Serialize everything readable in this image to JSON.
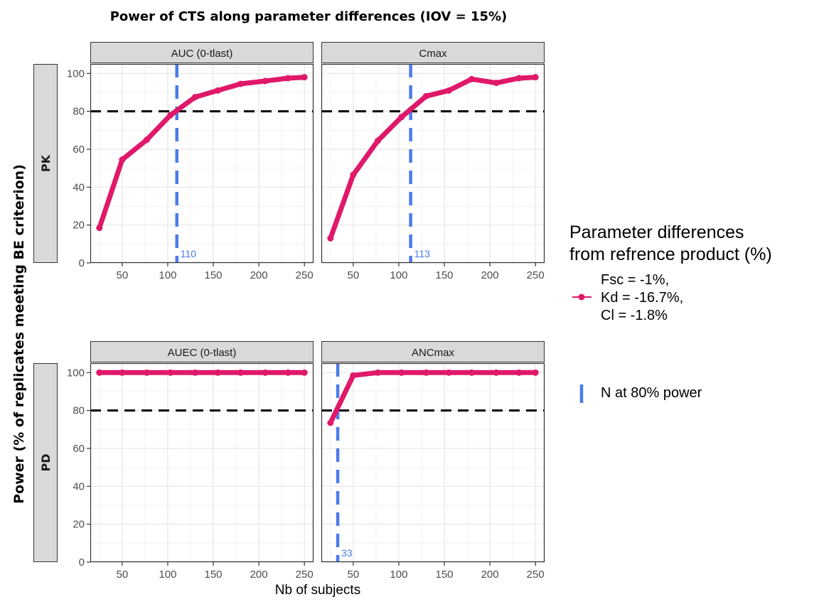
{
  "chart_data": {
    "type": "line",
    "title": "Power of CTS along parameter differences (IOV = 15%)",
    "xlabel": "Nb of subjects",
    "ylabel": "Power (% of replicates meeting BE criterion)",
    "xlim": [
      15,
      260
    ],
    "ylim": [
      0,
      105
    ],
    "x_ticks": [
      50,
      100,
      150,
      200,
      250
    ],
    "y_ticks": [
      0,
      20,
      40,
      60,
      80,
      100
    ],
    "threshold": 80,
    "row_labels": [
      "PK",
      "PD"
    ],
    "panels": [
      {
        "strip": "AUC (0-tlast)",
        "row": "PK",
        "col": 0,
        "x": [
          25,
          50,
          77,
          103,
          130,
          155,
          180,
          207,
          232,
          250
        ],
        "y": [
          18.5,
          54.5,
          65,
          78,
          87.5,
          91,
          94.5,
          96,
          97.5,
          98
        ],
        "n80": 110,
        "n80_label": "110"
      },
      {
        "strip": "Cmax",
        "row": "PK",
        "col": 1,
        "x": [
          25,
          50,
          77,
          103,
          130,
          155,
          180,
          207,
          232,
          250
        ],
        "y": [
          13,
          46.5,
          64.5,
          77,
          88,
          91,
          97,
          95,
          97.5,
          98
        ],
        "n80": 113,
        "n80_label": "113"
      },
      {
        "strip": "AUEC (0-tlast)",
        "row": "PD",
        "col": 0,
        "x": [
          25,
          50,
          77,
          103,
          130,
          155,
          180,
          207,
          232,
          250
        ],
        "y": [
          100,
          100,
          100,
          100,
          100,
          100,
          100,
          100,
          100,
          100
        ],
        "n80": null,
        "n80_label": ""
      },
      {
        "strip": "ANCmax",
        "row": "PD",
        "col": 1,
        "x": [
          25,
          50,
          77,
          103,
          130,
          155,
          180,
          207,
          232,
          250
        ],
        "y": [
          73.5,
          98.5,
          100,
          100,
          100,
          100,
          100,
          100,
          100,
          100
        ],
        "n80": 33,
        "n80_label": "33"
      }
    ],
    "legend": {
      "title_lines": [
        "Parameter differences",
        "from refrence product (%)"
      ],
      "series_label_lines": [
        "Fsc = -1%,",
        "Kd = -16.7%,",
        "Cl = -1.8%"
      ],
      "vline_label": "N at 80% power",
      "position": "right"
    },
    "colors": {
      "series": "#E0186A",
      "vline": "#4B7BEC",
      "threshold": "#000000",
      "strip_fill": "#D9D9D9",
      "grid": "#EBEBEB"
    }
  }
}
